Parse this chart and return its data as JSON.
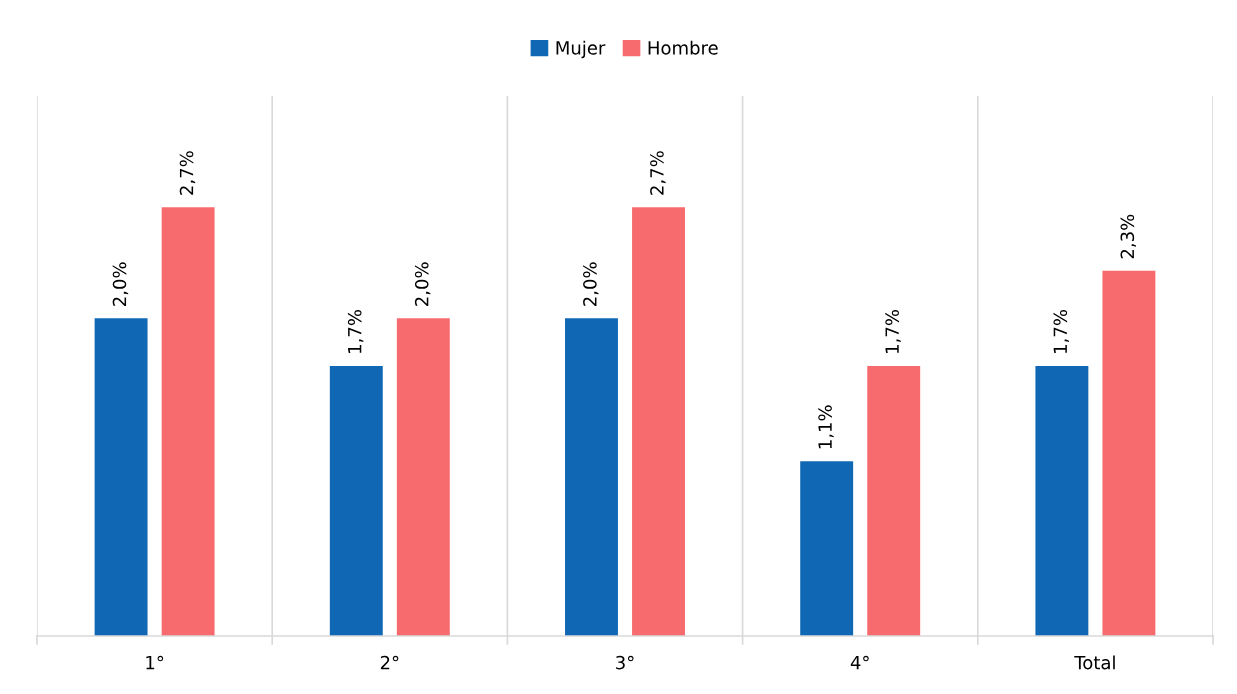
{
  "chart_data": {
    "type": "bar",
    "categories": [
      "1°",
      "2°",
      "3°",
      "4°",
      "Total"
    ],
    "series": [
      {
        "name": "Mujer",
        "color": "#1068b4",
        "values": [
          2.0,
          1.7,
          2.0,
          1.1,
          1.7
        ],
        "value_labels": [
          "2,0%",
          "1,7%",
          "2,0%",
          "1,1%",
          "1,7%"
        ]
      },
      {
        "name": "Hombre",
        "color": "#f76b6e",
        "values": [
          2.7,
          2.0,
          2.7,
          1.7,
          2.3
        ],
        "value_labels": [
          "2,7%",
          "2,0%",
          "2,7%",
          "1,7%",
          "2,3%"
        ]
      }
    ],
    "ylim": [
      0,
      3.4
    ],
    "tick_labels": "x",
    "grid": "x",
    "legend": "top"
  }
}
